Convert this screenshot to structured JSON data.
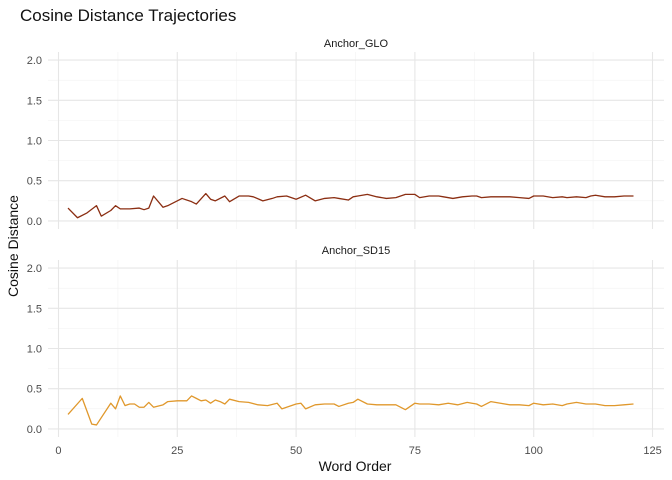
{
  "chart_data": {
    "type": "line",
    "title": "Cosine Distance Trajectories",
    "xlabel": "Word Order",
    "ylabel": "Cosine Distance",
    "xlim": [
      2,
      121
    ],
    "ylim": [
      0,
      2.0
    ],
    "xticks": [
      0,
      25,
      50,
      75,
      100,
      125
    ],
    "yticks": [
      0.0,
      0.5,
      1.0,
      1.5,
      2.0
    ],
    "ytick_labels": [
      "0.0",
      "0.5",
      "1.0",
      "1.5",
      "2.0"
    ],
    "grid": true,
    "facets": [
      {
        "name": "Anchor_GLO",
        "color": "#8B2E12",
        "x": [
          2,
          4,
          6,
          8,
          9,
          11,
          12,
          13,
          15,
          17,
          18,
          19,
          20,
          22,
          23,
          26,
          28,
          29,
          31,
          32,
          33,
          35,
          36,
          38,
          40,
          41,
          43,
          45,
          46,
          48,
          50,
          52,
          54,
          56,
          58,
          59,
          61,
          62,
          63,
          65,
          67,
          69,
          71,
          73,
          75,
          76,
          78,
          80,
          81,
          83,
          85,
          87,
          88,
          89,
          91,
          93,
          95,
          97,
          99,
          100,
          102,
          104,
          106,
          107,
          109,
          111,
          112,
          113,
          115,
          117,
          119,
          121
        ],
        "values": [
          0.16,
          0.04,
          0.1,
          0.19,
          0.06,
          0.13,
          0.19,
          0.15,
          0.15,
          0.16,
          0.14,
          0.16,
          0.31,
          0.17,
          0.19,
          0.28,
          0.24,
          0.21,
          0.34,
          0.27,
          0.25,
          0.31,
          0.24,
          0.31,
          0.31,
          0.3,
          0.25,
          0.28,
          0.3,
          0.31,
          0.27,
          0.32,
          0.25,
          0.28,
          0.29,
          0.28,
          0.26,
          0.3,
          0.31,
          0.33,
          0.3,
          0.28,
          0.29,
          0.33,
          0.33,
          0.29,
          0.31,
          0.31,
          0.3,
          0.28,
          0.3,
          0.31,
          0.31,
          0.29,
          0.3,
          0.3,
          0.3,
          0.29,
          0.28,
          0.31,
          0.31,
          0.29,
          0.3,
          0.29,
          0.3,
          0.29,
          0.31,
          0.32,
          0.3,
          0.3,
          0.31,
          0.31
        ]
      },
      {
        "name": "Anchor_SD15",
        "color": "#E0982C",
        "x": [
          2,
          5,
          7,
          8,
          11,
          12,
          13,
          14,
          15,
          16,
          17,
          18,
          19,
          20,
          22,
          23,
          25,
          27,
          28,
          29,
          30,
          31,
          32,
          33,
          34,
          35,
          36,
          38,
          40,
          42,
          44,
          46,
          47,
          49,
          50,
          51,
          52,
          54,
          56,
          58,
          59,
          61,
          62,
          63,
          65,
          67,
          69,
          71,
          73,
          75,
          76,
          78,
          80,
          82,
          84,
          86,
          87,
          88,
          89,
          91,
          93,
          95,
          97,
          99,
          100,
          102,
          104,
          106,
          107,
          109,
          111,
          112,
          113,
          115,
          117,
          119,
          121
        ],
        "values": [
          0.18,
          0.38,
          0.06,
          0.05,
          0.32,
          0.25,
          0.41,
          0.29,
          0.31,
          0.31,
          0.27,
          0.27,
          0.33,
          0.27,
          0.3,
          0.34,
          0.35,
          0.35,
          0.41,
          0.38,
          0.35,
          0.36,
          0.32,
          0.36,
          0.34,
          0.31,
          0.37,
          0.34,
          0.33,
          0.3,
          0.29,
          0.32,
          0.25,
          0.29,
          0.31,
          0.32,
          0.25,
          0.3,
          0.31,
          0.31,
          0.28,
          0.32,
          0.33,
          0.37,
          0.31,
          0.3,
          0.3,
          0.3,
          0.24,
          0.32,
          0.31,
          0.31,
          0.3,
          0.32,
          0.3,
          0.33,
          0.32,
          0.31,
          0.28,
          0.34,
          0.32,
          0.3,
          0.3,
          0.29,
          0.32,
          0.3,
          0.31,
          0.29,
          0.31,
          0.33,
          0.31,
          0.31,
          0.31,
          0.29,
          0.29,
          0.3,
          0.31
        ]
      }
    ]
  }
}
